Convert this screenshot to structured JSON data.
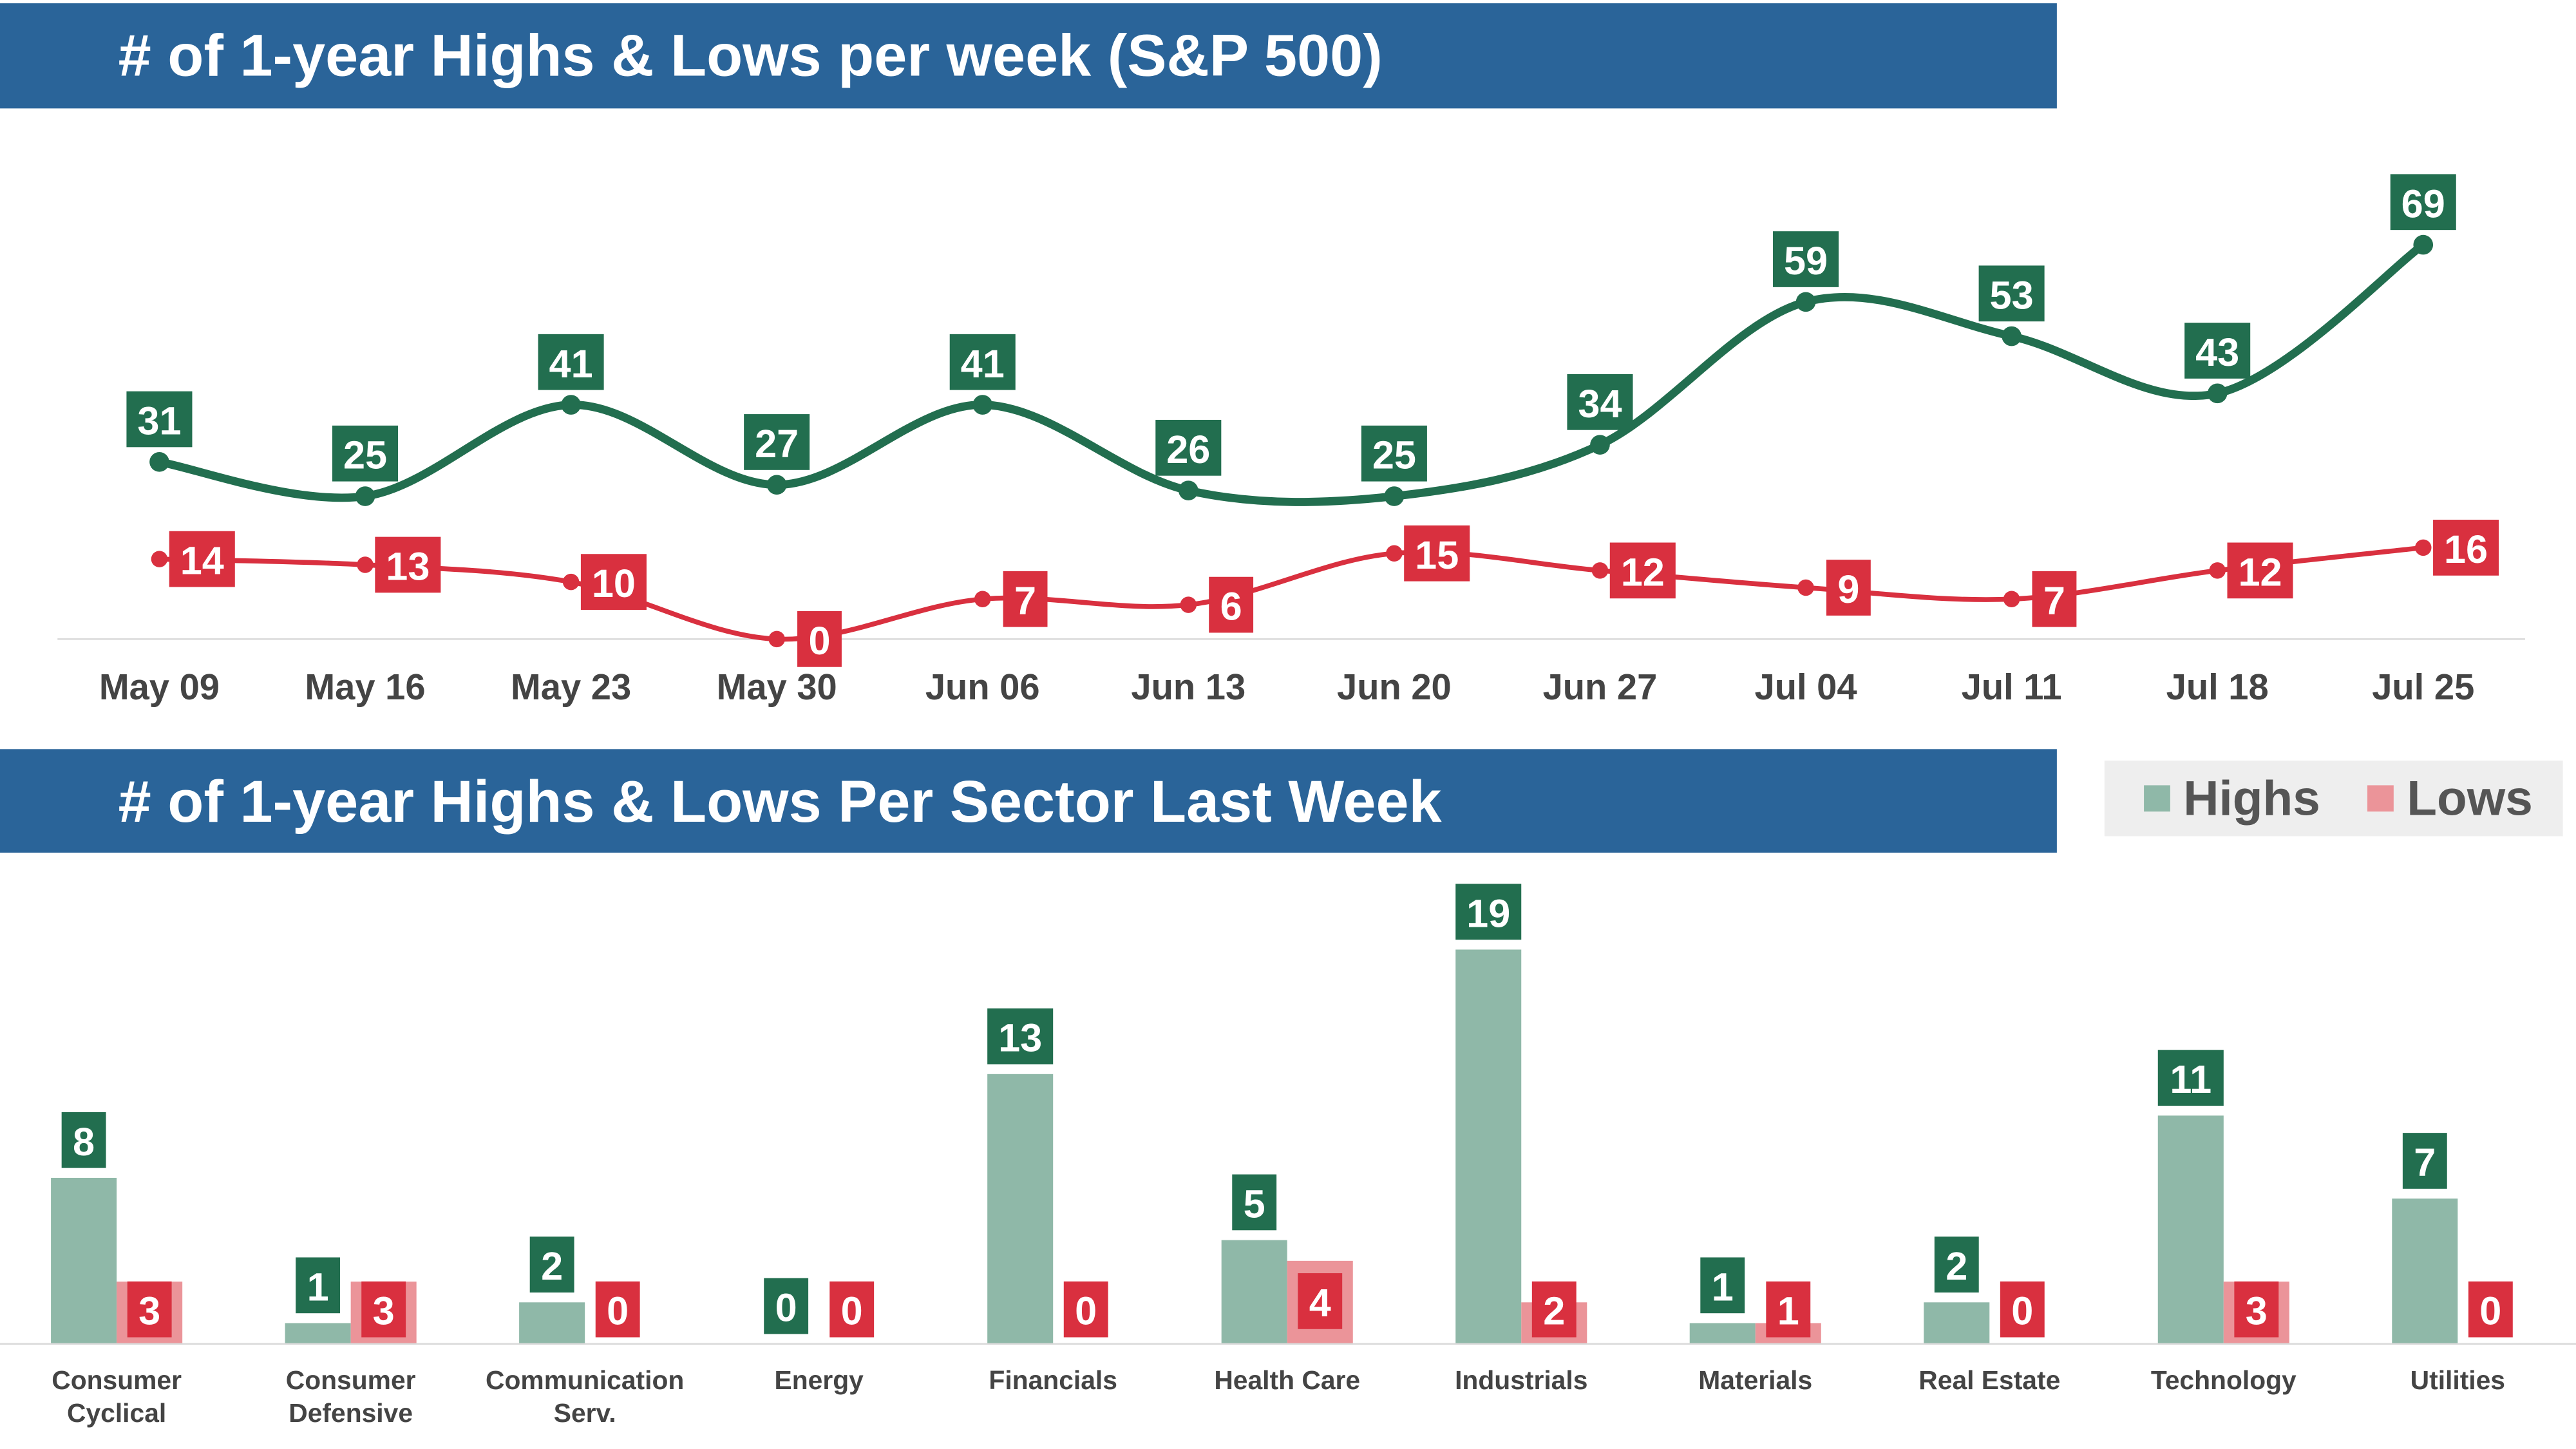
{
  "chart_data": [
    {
      "type": "line",
      "title": "# of 1-year Highs & Lows per week (S&P 500)",
      "categories": [
        "May 09",
        "May 16",
        "May 23",
        "May 30",
        "Jun 06",
        "Jun 13",
        "Jun 20",
        "Jun 27",
        "Jul 04",
        "Jul 11",
        "Jul 18",
        "Jul 25"
      ],
      "series": [
        {
          "color": "#226e4f",
          "values": [
            31,
            25,
            41,
            27,
            41,
            26,
            25,
            34,
            59,
            53,
            43,
            69
          ]
        },
        {
          "color": "#d9303f",
          "values": [
            14,
            13,
            10,
            0,
            7,
            6,
            15,
            12,
            9,
            7,
            12,
            16
          ]
        }
      ]
    },
    {
      "type": "bar",
      "title": "# of 1-year Highs & Lows Per Sector Last Week",
      "categories": [
        "Consumer\nCyclical",
        "Consumer\nDefensive",
        "Communication\nServ.",
        "Energy",
        "Financials",
        "Health Care",
        "Industrials",
        "Materials",
        "Real Estate",
        "Technology",
        "Utilities"
      ],
      "series": [
        {
          "name": "Highs",
          "color": "#8fb8a8",
          "values": [
            8,
            1,
            2,
            0,
            13,
            5,
            19,
            1,
            2,
            11,
            7
          ]
        },
        {
          "name": "Lows",
          "color": "#eb9499",
          "values": [
            3,
            3,
            0,
            0,
            0,
            4,
            2,
            1,
            0,
            3,
            0
          ]
        }
      ],
      "legend": "top-right"
    }
  ]
}
